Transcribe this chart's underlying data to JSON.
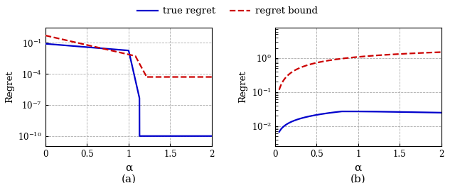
{
  "legend_labels": [
    "true regret",
    "regret bound"
  ],
  "legend_colors": [
    "#0000cc",
    "#cc0000"
  ],
  "xlabel": "α",
  "ylabel": "Regret",
  "subplot_labels": [
    "(a)",
    "(b)"
  ],
  "grid_color": "#aaaaaa",
  "grid_style": "--",
  "line_width": 1.6,
  "plot_a": {
    "xlim": [
      0,
      2
    ],
    "ylim": [
      1e-11,
      3.0
    ],
    "yticks": [
      1e-10,
      1e-07,
      0.0001,
      0.1
    ],
    "xticks": [
      0,
      0.5,
      1.0,
      1.5,
      2.0
    ]
  },
  "plot_b": {
    "xlim": [
      0,
      2
    ],
    "ylim": [
      0.0025,
      8.0
    ],
    "yticks": [
      0.01,
      0.1,
      1.0
    ],
    "xticks": [
      0,
      0.5,
      1.0,
      1.5,
      2.0
    ]
  }
}
